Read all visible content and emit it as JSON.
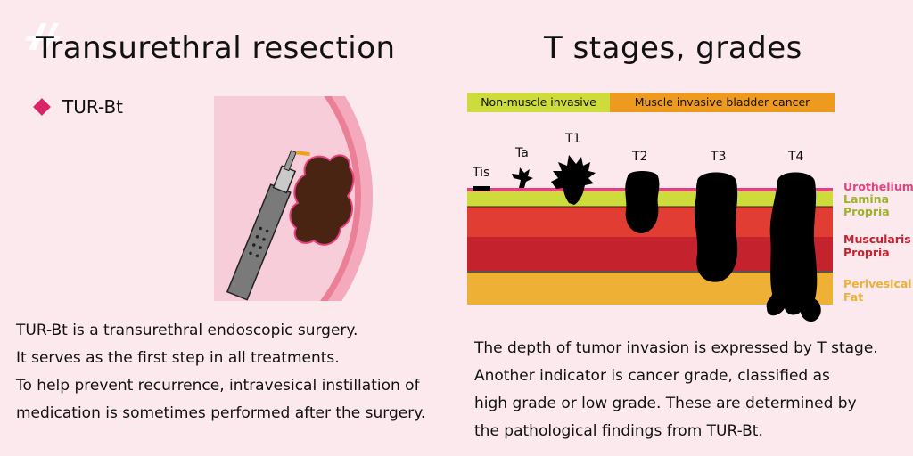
{
  "left": {
    "title": "Transurethral resection",
    "bullet": "TUR-Bt",
    "paragraph": [
      "TUR-Bt is a transurethral endoscopic surgery.",
      "It serves as the first step in all treatments.",
      "To help prevent recurrence, intravesical instillation of",
      "medication is sometimes performed after the surgery."
    ]
  },
  "right": {
    "title": "T stages, grades",
    "bands": {
      "non_muscle": "Non-muscle invasive",
      "muscle": "Muscle invasive bladder cancer"
    },
    "stages": [
      "Tis",
      "Ta",
      "T1",
      "T2",
      "T3",
      "T4"
    ],
    "layers": {
      "urothelium": "Urothelium",
      "lamina_1": "Lamina",
      "lamina_2": "Propria",
      "muscularis_1": "Muscularis",
      "muscularis_2": "Propria",
      "perivesical_1": "Perivesical",
      "perivesical_2": "Fat"
    },
    "paragraph": [
      "The depth of tumor invasion is expressed by T stage.",
      "Another indicator is cancer grade, classified as",
      "high grade or low grade. These are determined by",
      "the pathological findings from TUR-Bt."
    ]
  },
  "colors": {
    "background": "#fbe9ee",
    "urothelium": "#e6417e",
    "lamina": "#cddc3a",
    "muscularis_upper": "#e23d33",
    "muscularis_lower": "#c4232e",
    "fat": "#eeb035",
    "tumor": "#000000",
    "resected_tumor": "#4a2412",
    "bullet": "#d9246a"
  }
}
